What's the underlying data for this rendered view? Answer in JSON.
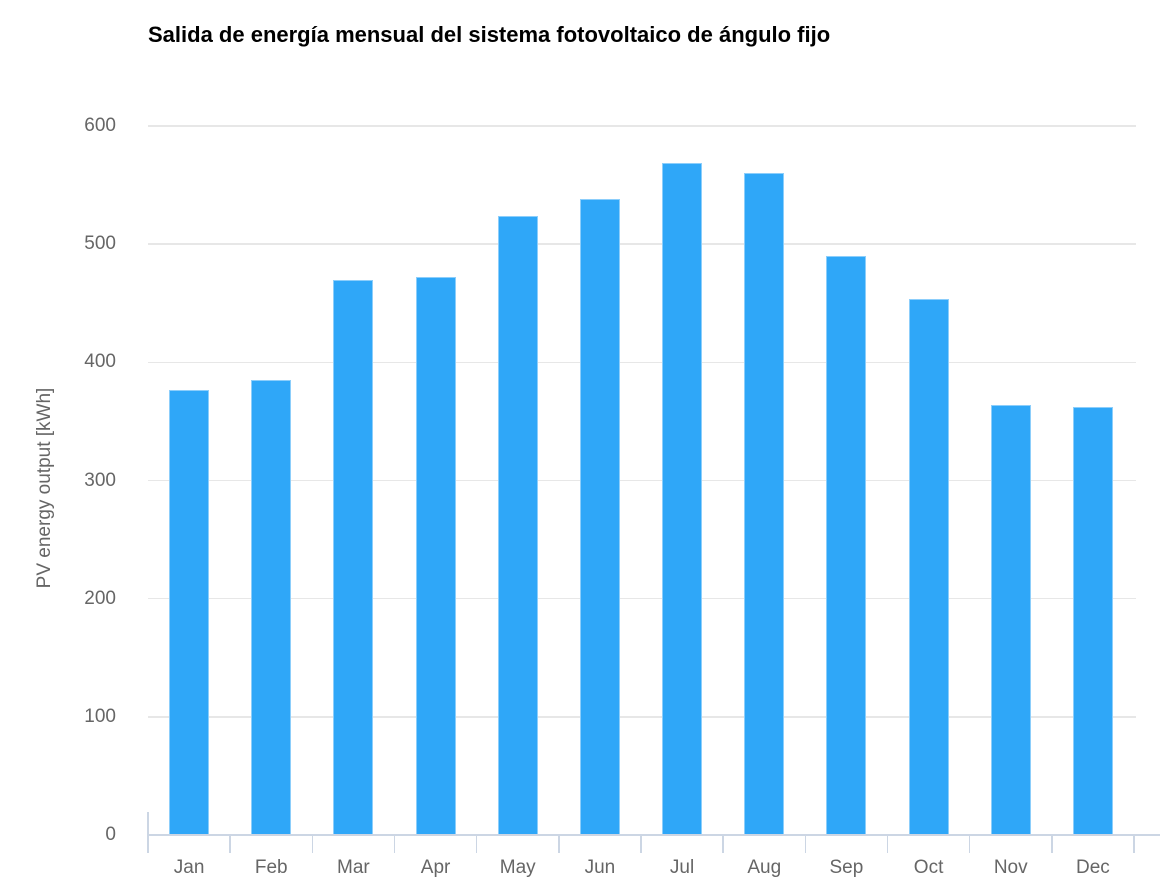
{
  "chart_data": {
    "type": "bar",
    "title": "Salida de energía mensual del sistema fotovoltaico de ángulo fijo",
    "xlabel": "",
    "ylabel": "PV energy output [kWh]",
    "categories": [
      "Jan",
      "Feb",
      "Mar",
      "Apr",
      "May",
      "Jun",
      "Jul",
      "Aug",
      "Sep",
      "Oct",
      "Nov",
      "Dec"
    ],
    "values": [
      377,
      385,
      470,
      472,
      524,
      538,
      569,
      560,
      490,
      454,
      364,
      362
    ],
    "yticks": [
      0,
      100,
      200,
      300,
      400,
      500,
      600
    ],
    "ylim": [
      0,
      600
    ],
    "grid": true,
    "legend": false,
    "colors": {
      "bar": "#2FA7F8",
      "gridline": "#e7e7e7",
      "axis_line": "#ccd6e4",
      "tick_label": "#666666",
      "title": "#000000"
    }
  }
}
